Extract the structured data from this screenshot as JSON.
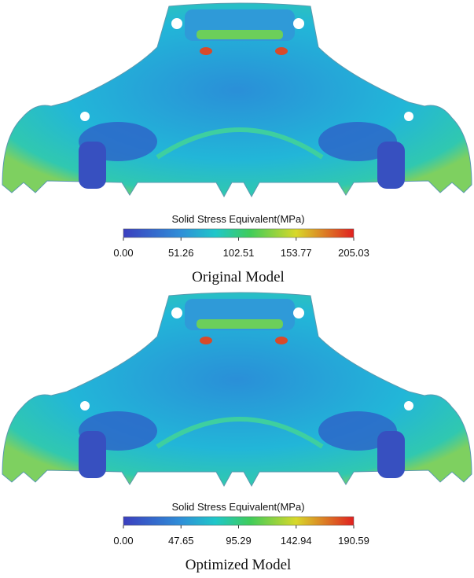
{
  "panels": [
    {
      "colorbar": {
        "title": "Solid Stress Equivalent(MPa)",
        "ticks": [
          "0.00",
          "51.26",
          "102.51",
          "153.77",
          "205.03"
        ]
      },
      "caption": "Original Model"
    },
    {
      "colorbar": {
        "title": "Solid Stress Equivalent(MPa)",
        "ticks": [
          "0.00",
          "47.65",
          "95.29",
          "142.94",
          "190.59"
        ]
      },
      "caption": "Optimized Model"
    }
  ]
}
